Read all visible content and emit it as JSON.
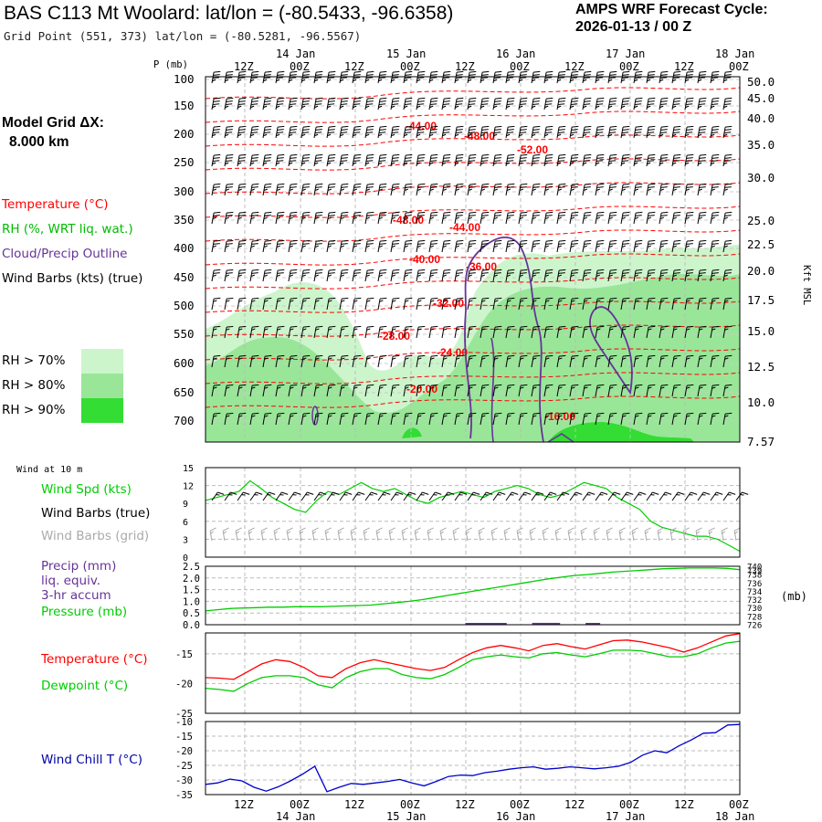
{
  "header": {
    "title": "BAS C113 Mt Woolard: lat/lon = (-80.5433, -96.6358)",
    "grid_point": "Grid Point (551, 373) lat/lon = (-80.5281, -96.5567)",
    "cycle_line1": "AMPS WRF Forecast Cycle:",
    "cycle_line2": "2026-01-13 / 00  Z"
  },
  "side_panel": {
    "model_grid_line1": "Model Grid ΔX:",
    "model_grid_line2": "8.000 km",
    "legend": {
      "temperature": "Temperature (°C)",
      "rh": "RH (%, WRT liq. wat.)",
      "cloud": "Cloud/Precip Outline",
      "wind": "Wind Barbs (kts) (true)"
    },
    "rh_boxes": [
      {
        "label": "RH > 70%",
        "color": "#ccf5cc"
      },
      {
        "label": "RH > 80%",
        "color": "#99e699"
      },
      {
        "label": "RH > 90%",
        "color": "#33dd33"
      }
    ]
  },
  "colors": {
    "temperature": "#ff0000",
    "dewpoint": "#00cc00",
    "windchill": "#0000cc",
    "wind_speed": "#00cc00",
    "cloud_outline": "#663399",
    "grid_barbs": "#aaaaaa",
    "precip": "#663399"
  },
  "time_axis": {
    "top_hours": [
      "12Z",
      "00Z",
      "12Z",
      "00Z",
      "12Z",
      "00Z",
      "12Z",
      "00Z",
      "12Z",
      "00Z"
    ],
    "dates": [
      "14 Jan",
      "15 Jan",
      "16 Jan",
      "17 Jan",
      "18 Jan"
    ],
    "pressure_unit": "P (mb)"
  },
  "chart_data": [
    {
      "type": "heatmap",
      "panel": "cross_section",
      "y_axis_left": {
        "label": "P (mb)",
        "ticks": [
          100,
          150,
          200,
          250,
          300,
          350,
          400,
          450,
          500,
          550,
          600,
          650,
          700
        ]
      },
      "y_axis_right": {
        "label": "Kft MSL",
        "ticks": [
          "50.0",
          "45.0",
          "40.0",
          "35.0",
          "30.0",
          "25.0",
          "22.5",
          "20.0",
          "17.5",
          "15.0",
          "12.5",
          "10.0",
          "7.57"
        ]
      },
      "temperature_contour_labels": [
        "-44.00",
        "-48.00",
        "-52.00",
        "-48.00",
        "-44.00",
        "-40.00",
        "-36.00",
        "-32.00",
        "-28.00",
        "-24.00",
        "-20.00",
        "-16.00"
      ]
    },
    {
      "type": "line",
      "panel": "wind_10m",
      "corner_label": "Wind at 10 m",
      "series_labels": {
        "speed": "Wind Spd (kts)",
        "barbs_true": "Wind Barbs (true)",
        "barbs_grid": "Wind Barbs (grid)"
      },
      "y_ticks": [
        0,
        3,
        6,
        9,
        12,
        15
      ],
      "ylim": [
        0,
        15
      ],
      "series": [
        {
          "name": "Wind Spd (kts)",
          "values": [
            9.5,
            10,
            10.5,
            11,
            12.8,
            11.5,
            10,
            9,
            8,
            7.5,
            9.5,
            11,
            10.5,
            11.5,
            12.5,
            11.5,
            11,
            11.5,
            10.5,
            9.5,
            9,
            10,
            10.5,
            11,
            10.5,
            10,
            11,
            11.5,
            12,
            11.5,
            10.5,
            10,
            10.5,
            11.5,
            12.5,
            12,
            11.5,
            10,
            9,
            8,
            6,
            5,
            4.5,
            4,
            3.5,
            3.5,
            3,
            2,
            1
          ]
        }
      ]
    },
    {
      "type": "line",
      "panel": "precip_pressure",
      "series_labels": {
        "precip": "Precip (mm)",
        "precip2": "liq. equiv.",
        "precip3": "3-hr accum",
        "pressure": "Pressure (mb)"
      },
      "y_ticks_left": [
        "0.0",
        "0.5",
        "1.0",
        "1.5",
        "2.0",
        "2.5"
      ],
      "y_ticks_right": [
        740,
        739,
        738,
        736,
        734,
        732,
        730,
        728,
        726
      ],
      "y_unit_right": "(mb)",
      "ylim": [
        726,
        740
      ],
      "series": [
        {
          "name": "Pressure (mb)",
          "values": [
            729.3,
            729.6,
            729.9,
            730,
            730.1,
            730.2,
            730.2,
            730.3,
            730.3,
            730.3,
            730.4,
            730.5,
            730.6,
            730.7,
            731.0,
            731.3,
            731.6,
            732.0,
            732.5,
            733.0,
            733.5,
            734.0,
            734.5,
            735.0,
            735.5,
            736.0,
            736.5,
            737.0,
            737.4,
            737.8,
            738.0,
            738.3,
            738.6,
            738.8,
            739.0,
            739.2,
            739.4,
            739.5,
            739.6,
            739.6,
            739.6,
            739.5,
            739.2
          ]
        }
      ],
      "precip": [
        0,
        0,
        0,
        0,
        0,
        0,
        0,
        0,
        0,
        0,
        0,
        0,
        0,
        0,
        0,
        0,
        0,
        0,
        0,
        0,
        0.05,
        0.05,
        0.05,
        0,
        0,
        0.08,
        0.08,
        0,
        0,
        0.03,
        0,
        0,
        0,
        0,
        0,
        0,
        0,
        0,
        0,
        0,
        0
      ]
    },
    {
      "type": "line",
      "panel": "temp_dewpoint",
      "series_labels": {
        "temperature": "Temperature (°C)",
        "dewpoint": "Dewpoint (°C)"
      },
      "y_ticks": [
        -25,
        -20,
        -15
      ],
      "ylim": [
        -25,
        -11.5
      ],
      "series": [
        {
          "name": "Temperature (°C)",
          "values": [
            -19.0,
            -19.1,
            -19.3,
            -18.0,
            -16.7,
            -16.0,
            -16.3,
            -17.3,
            -18.7,
            -19.0,
            -17.5,
            -16.5,
            -16.0,
            -16.5,
            -17.0,
            -17.5,
            -17.8,
            -17.3,
            -16.0,
            -14.8,
            -14.0,
            -13.6,
            -14.0,
            -14.5,
            -13.6,
            -13.3,
            -13.8,
            -14.2,
            -13.5,
            -12.8,
            -12.7,
            -13.0,
            -13.5,
            -14.0,
            -14.7,
            -14.0,
            -13.0,
            -12.0,
            -11.6
          ]
        },
        {
          "name": "Dewpoint (°C)",
          "values": [
            -20.8,
            -21.0,
            -21.3,
            -20.0,
            -19.0,
            -18.7,
            -18.7,
            -19.0,
            -20.2,
            -20.7,
            -19.0,
            -18.0,
            -17.5,
            -17.5,
            -18.5,
            -19.0,
            -19.2,
            -18.5,
            -17.3,
            -16.0,
            -15.5,
            -15.2,
            -15.5,
            -15.7,
            -15.0,
            -14.8,
            -15.2,
            -15.5,
            -15.0,
            -14.4,
            -14.4,
            -14.5,
            -15.0,
            -15.5,
            -15.5,
            -15.0,
            -14.0,
            -13.2,
            -12.9
          ]
        }
      ]
    },
    {
      "type": "line",
      "panel": "wind_chill",
      "series_labels": {
        "windchill": "Wind Chill T (°C)"
      },
      "y_ticks": [
        -10,
        -15,
        -20,
        -25,
        -30,
        -35
      ],
      "ylim": [
        -35,
        -10
      ],
      "series": [
        {
          "name": "Wind Chill T (°C)",
          "values": [
            -31.5,
            -31.0,
            -29.7,
            -30.3,
            -32.5,
            -33.8,
            -32.3,
            -30.3,
            -28.0,
            -25.3,
            -34.0,
            -32.5,
            -31.2,
            -31.5,
            -31.0,
            -30.5,
            -29.8,
            -31.0,
            -32.0,
            -30.5,
            -28.8,
            -28.3,
            -28.5,
            -27.5,
            -27.0,
            -26.3,
            -25.8,
            -25.5,
            -26.3,
            -26.0,
            -25.5,
            -25.8,
            -26.2,
            -25.8,
            -25.3,
            -24.0,
            -21.5,
            -20.0,
            -20.7,
            -18.3,
            -16.3,
            -14.0,
            -13.8,
            -11.2,
            -11.0
          ]
        }
      ]
    }
  ]
}
